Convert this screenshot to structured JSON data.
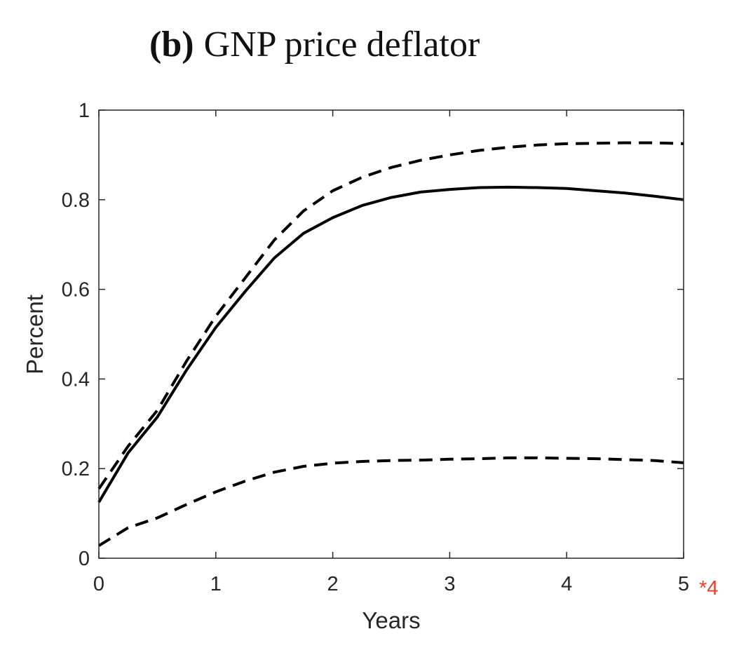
{
  "chart_data": {
    "type": "line",
    "title_prefix": "(b)",
    "title": "GNP price deflator",
    "xlabel": "Years",
    "ylabel": "Percent",
    "xlim": [
      0,
      5
    ],
    "ylim": [
      0,
      1
    ],
    "xticks": [
      0,
      1,
      2,
      3,
      4,
      5
    ],
    "xtick_labels": [
      "0",
      "1",
      "2",
      "3",
      "4",
      "5"
    ],
    "yticks": [
      0,
      0.2,
      0.4,
      0.6,
      0.8,
      1
    ],
    "ytick_labels": [
      "0",
      "0.2",
      "0.4",
      "0.6",
      "0.8",
      "1"
    ],
    "grid": false,
    "x": [
      0,
      0.25,
      0.5,
      0.75,
      1,
      1.25,
      1.5,
      1.75,
      2,
      2.25,
      2.5,
      2.75,
      3,
      3.25,
      3.5,
      3.75,
      4,
      4.25,
      4.5,
      4.75,
      5
    ],
    "series": [
      {
        "style": "solid",
        "color": "#000000",
        "values": [
          0.125,
          0.235,
          0.315,
          0.42,
          0.515,
          0.595,
          0.67,
          0.725,
          0.76,
          0.787,
          0.805,
          0.817,
          0.823,
          0.827,
          0.828,
          0.827,
          0.825,
          0.82,
          0.815,
          0.808,
          0.8
        ]
      },
      {
        "style": "dashed",
        "color": "#000000",
        "values": [
          0.155,
          0.25,
          0.33,
          0.44,
          0.54,
          0.625,
          0.71,
          0.775,
          0.82,
          0.85,
          0.872,
          0.888,
          0.9,
          0.91,
          0.917,
          0.922,
          0.925,
          0.926,
          0.927,
          0.927,
          0.925
        ]
      },
      {
        "style": "dashed",
        "color": "#000000",
        "values": [
          0.028,
          0.068,
          0.09,
          0.12,
          0.148,
          0.172,
          0.192,
          0.205,
          0.212,
          0.216,
          0.218,
          0.219,
          0.221,
          0.222,
          0.224,
          0.224,
          0.223,
          0.222,
          0.22,
          0.218,
          0.213
        ]
      }
    ],
    "annotations": [
      {
        "text": "*4",
        "color": "#e8412c"
      }
    ]
  }
}
